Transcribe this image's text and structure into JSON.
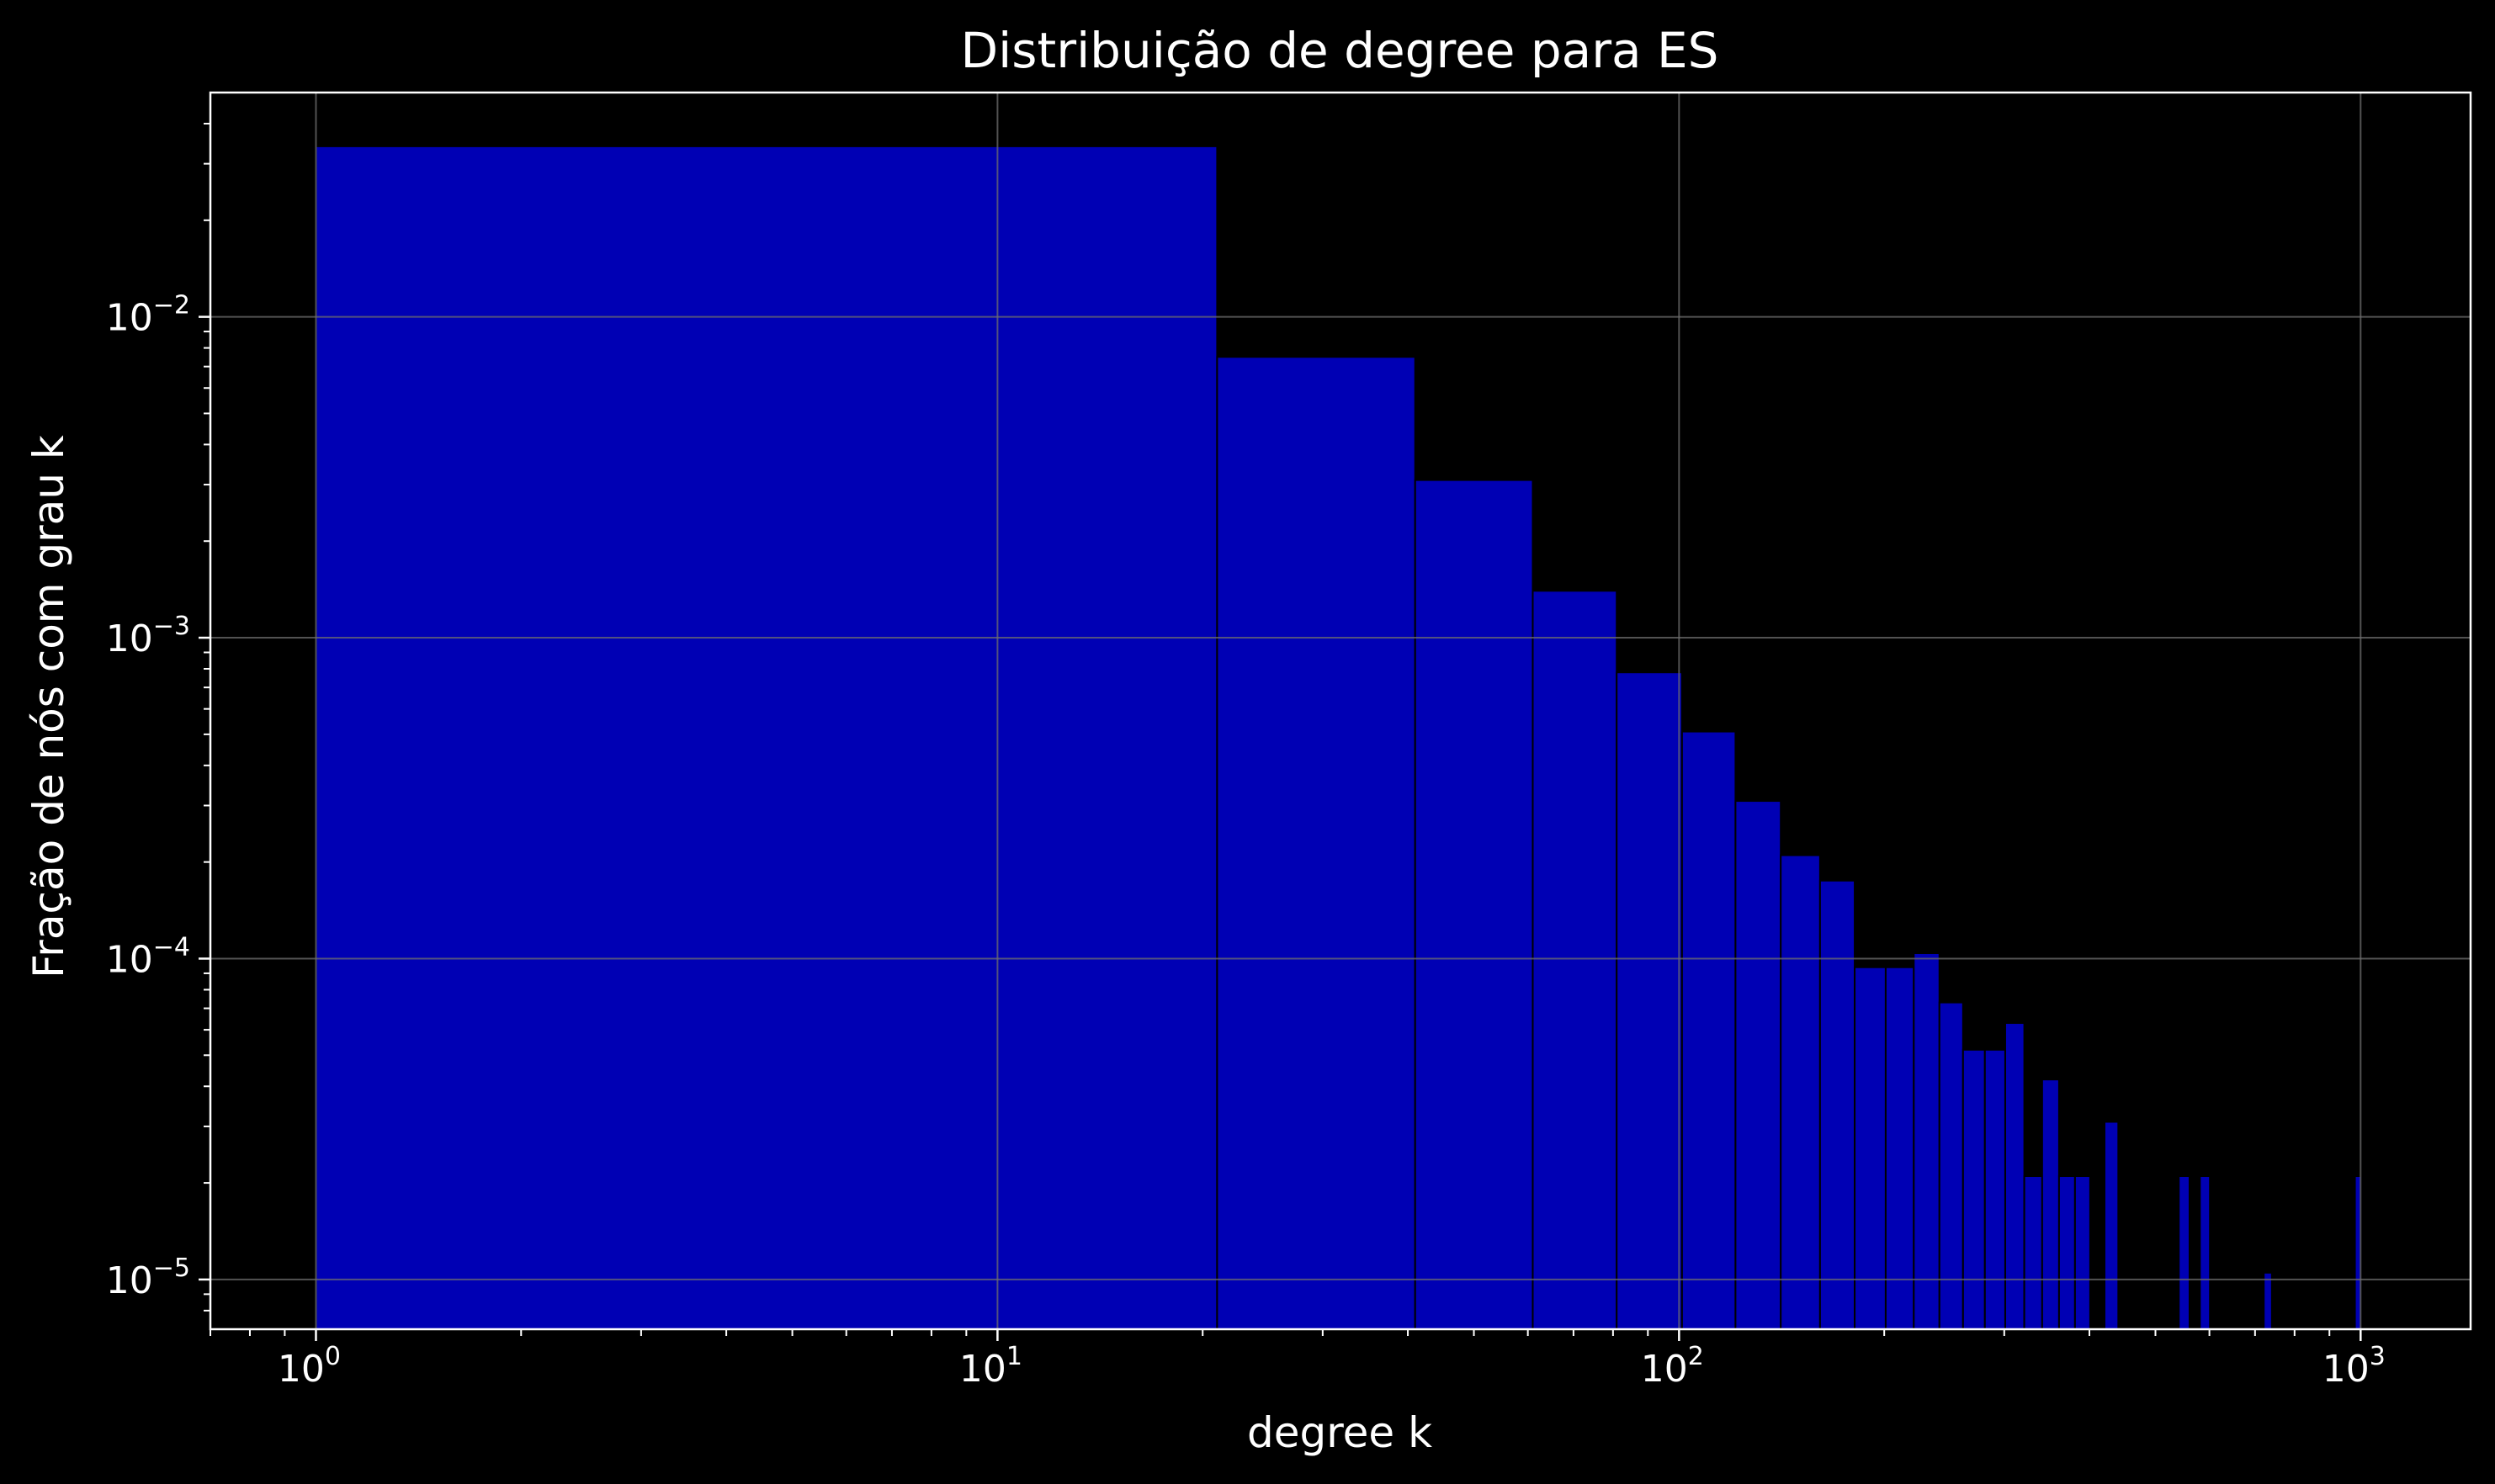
{
  "chart_data": {
    "type": "bar",
    "title": "Distribuição de degree para ES",
    "xlabel": "degree k",
    "ylabel": "Fração de nós com grau k",
    "x_scale": "log",
    "y_scale": "log",
    "xlim": [
      0.7,
      1450
    ],
    "ylim": [
      7e-06,
      0.05
    ],
    "grid": true,
    "colors": {
      "background": "#000000",
      "bar": "#0000b4",
      "bar_edge": "#000000",
      "grid": "#6e6e6e",
      "axis": "#ffffff"
    },
    "x_ticks": [
      {
        "base": "10",
        "exp": "0",
        "value": 1
      },
      {
        "base": "10",
        "exp": "1",
        "value": 10
      },
      {
        "base": "10",
        "exp": "2",
        "value": 100
      },
      {
        "base": "10",
        "exp": "3",
        "value": 1000
      }
    ],
    "y_ticks": [
      {
        "base": "10",
        "exp": "−2",
        "value": 0.01
      },
      {
        "base": "10",
        "exp": "−3",
        "value": 0.001
      },
      {
        "base": "10",
        "exp": "−4",
        "value": 0.0001
      },
      {
        "base": "10",
        "exp": "−5",
        "value": 1e-05
      }
    ],
    "bins": [
      {
        "x0": 1,
        "x1": 21,
        "value": 0.034
      },
      {
        "x0": 21,
        "x1": 41,
        "value": 0.0075
      },
      {
        "x0": 41,
        "x1": 61,
        "value": 0.0031
      },
      {
        "x0": 61,
        "x1": 81,
        "value": 0.0014
      },
      {
        "x0": 81,
        "x1": 101,
        "value": 0.00078
      },
      {
        "x0": 101,
        "x1": 121,
        "value": 0.00051
      },
      {
        "x0": 121,
        "x1": 141,
        "value": 0.00031
      },
      {
        "x0": 141,
        "x1": 161,
        "value": 0.00021
      },
      {
        "x0": 161,
        "x1": 181,
        "value": 0.000175
      },
      {
        "x0": 181,
        "x1": 201,
        "value": 9.4e-05
      },
      {
        "x0": 201,
        "x1": 221,
        "value": 9.4e-05
      },
      {
        "x0": 221,
        "x1": 241,
        "value": 0.000104
      },
      {
        "x0": 241,
        "x1": 261,
        "value": 7.3e-05
      },
      {
        "x0": 261,
        "x1": 281,
        "value": 5.2e-05
      },
      {
        "x0": 281,
        "x1": 301,
        "value": 5.2e-05
      },
      {
        "x0": 301,
        "x1": 321,
        "value": 6.3e-05
      },
      {
        "x0": 321,
        "x1": 341,
        "value": 2.1e-05
      },
      {
        "x0": 341,
        "x1": 361,
        "value": 4.2e-05
      },
      {
        "x0": 361,
        "x1": 381,
        "value": 2.1e-05
      },
      {
        "x0": 381,
        "x1": 401,
        "value": 2.1e-05
      },
      {
        "x0": 421,
        "x1": 441,
        "value": 3.1e-05
      },
      {
        "x0": 541,
        "x1": 561,
        "value": 2.1e-05
      },
      {
        "x0": 581,
        "x1": 601,
        "value": 2.1e-05
      },
      {
        "x0": 721,
        "x1": 741,
        "value": 1.05e-05
      },
      {
        "x0": 981,
        "x1": 1001,
        "value": 2.1e-05
      }
    ]
  }
}
